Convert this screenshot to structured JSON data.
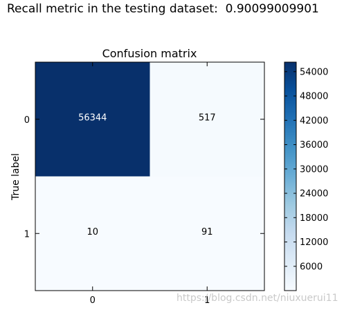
{
  "header": {
    "title_label": "Recall metric in the testing dataset:",
    "value": "0.90099009901"
  },
  "chart_data": {
    "type": "heatmap",
    "title": "Confusion matrix",
    "ylabel": "True label",
    "xlabel": "",
    "x_ticks": [
      "0",
      "1"
    ],
    "y_ticks": [
      "0",
      "1"
    ],
    "matrix": [
      [
        56344,
        517
      ],
      [
        10,
        91
      ]
    ],
    "colormap": "Blues",
    "colorbar": {
      "min": 10,
      "max": 56344,
      "ticks": [
        6000,
        12000,
        18000,
        24000,
        30000,
        36000,
        42000,
        48000,
        54000
      ]
    },
    "colors": {
      "low": "#f7fbff",
      "high": "#08306b"
    }
  },
  "watermark": "https://blog.csdn.net/niuxuerui11"
}
